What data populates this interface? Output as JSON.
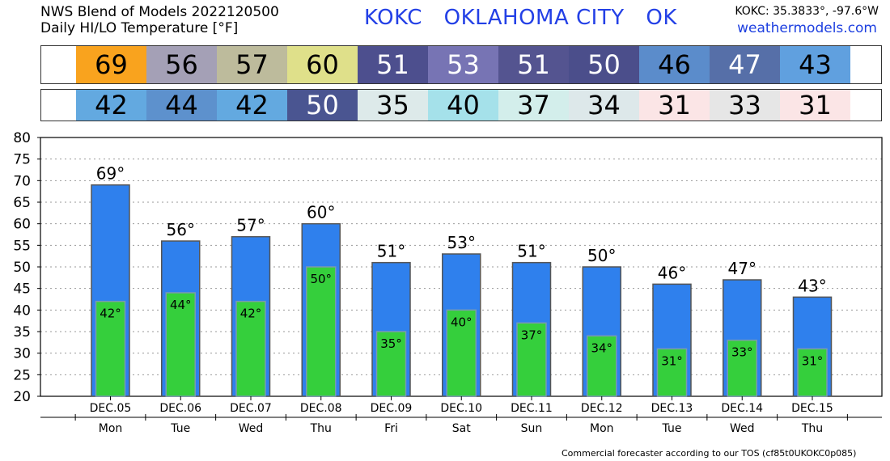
{
  "header": {
    "line1": "NWS Blend of Models 2022120500",
    "line2": "Daily HI/LO Temperature [°F]",
    "station_code": "KOKC",
    "station_name": "OKLAHOMA CITY",
    "station_state": "OK",
    "coords": "KOKC: 35.3833°, -97.6°W",
    "website": "weathermodels.com"
  },
  "footer": "Commercial forecaster according to our TOS (cf85t0UKOKC0p085)",
  "strip": {
    "hi_colors": [
      "#f9a31e",
      "#a4a0b6",
      "#bdbb9c",
      "#dfe08a",
      "#4d4f8e",
      "#7774b4",
      "#545490",
      "#4b4e8b",
      "#5b8ccb",
      "#566fa8",
      "#60a0df"
    ],
    "hi_text_colors": [
      "#000",
      "#000",
      "#000",
      "#000",
      "#fff",
      "#fff",
      "#fff",
      "#fff",
      "#000",
      "#fff",
      "#000"
    ],
    "lo_colors": [
      "#63a9e0",
      "#5d91cd",
      "#63a9e0",
      "#4a5591",
      "#ddeaea",
      "#a5e1ea",
      "#d3eeeb",
      "#dde8ea",
      "#fbe5e6",
      "#e6e6e6",
      "#fbe5e6"
    ],
    "lo_text_colors": [
      "#000",
      "#000",
      "#000",
      "#fff",
      "#000",
      "#000",
      "#000",
      "#000",
      "#000",
      "#000",
      "#000"
    ]
  },
  "chart_data": {
    "type": "bar",
    "categories": [
      "DEC.05",
      "DEC.06",
      "DEC.07",
      "DEC.08",
      "DEC.09",
      "DEC.10",
      "DEC.11",
      "DEC.12",
      "DEC.13",
      "DEC.14",
      "DEC.15"
    ],
    "days": [
      "Mon",
      "Tue",
      "Wed",
      "Thu",
      "Fri",
      "Sat",
      "Sun",
      "Mon",
      "Tue",
      "Wed",
      "Thu"
    ],
    "series": [
      {
        "values": [
          69,
          56,
          57,
          60,
          51,
          53,
          51,
          50,
          46,
          47,
          43
        ],
        "color": "#2f80ed"
      },
      {
        "values": [
          42,
          44,
          42,
          50,
          35,
          40,
          37,
          34,
          31,
          33,
          31
        ],
        "color": "#35cf3c"
      }
    ],
    "ylim": [
      20,
      80
    ],
    "yticks": [
      20,
      25,
      30,
      35,
      40,
      45,
      50,
      55,
      60,
      65,
      70,
      75,
      80
    ],
    "grid": true,
    "title": "",
    "xlabel": "",
    "ylabel": ""
  }
}
